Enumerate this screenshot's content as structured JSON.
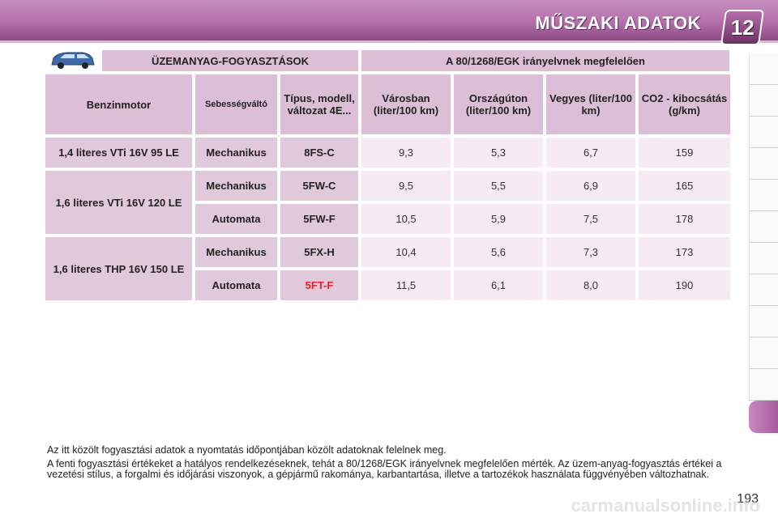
{
  "header": {
    "title": "MŰSZAKI ADATOK",
    "chapter": "12"
  },
  "table": {
    "group_left": "ÜZEMANYAG-FOGYASZTÁSOK",
    "group_right": "A 80/1268/EGK irányelvnek megfelelően",
    "columns": [
      "Benzinmotor",
      "Sebességváltó",
      "Típus, modell, változat 4E...",
      "Városban (liter/100 km)",
      "Országúton (liter/100 km)",
      "Vegyes (liter/100 km)",
      "CO2 - kibocsátás (g/km)"
    ],
    "rows": [
      {
        "engine": "1,4 literes VTi 16V 95 LE",
        "gearbox": "Mechanikus",
        "type": "8FS-C",
        "city": "9,3",
        "road": "5,3",
        "mixed": "6,7",
        "co2": "159"
      },
      {
        "engine": "1,6 literes VTi 16V 120 LE",
        "gearbox": "Mechanikus",
        "type": "5FW-C",
        "city": "9,5",
        "road": "5,5",
        "mixed": "6,9",
        "co2": "165"
      },
      {
        "engine": "",
        "gearbox": "Automata",
        "type": "5FW-F",
        "city": "10,5",
        "road": "5,9",
        "mixed": "7,5",
        "co2": "178"
      },
      {
        "engine": "1,6 literes THP 16V 150 LE",
        "gearbox": "Mechanikus",
        "type": "5FX-H",
        "city": "10,4",
        "road": "5,6",
        "mixed": "7,3",
        "co2": "173"
      },
      {
        "engine": "",
        "gearbox": "Automata",
        "type": "5FT-F",
        "city": "11,5",
        "road": "6,1",
        "mixed": "8,0",
        "co2": "190"
      }
    ]
  },
  "footnotes": [
    "Az itt közölt fogyasztási adatok a nyomtatás időpontjában közölt adatoknak felelnek meg.",
    "A fenti fogyasztási értékeket a hatályos rendelkezéseknek, tehát a 80/1268/EGK irányelvnek megfelelően mérték. Az üzem-anyag-fogyasztás értékei a vezetési stílus, a forgalmi és időjárási viszonyok, a gépjármű rakománya, karbantartása, illetve a tartozékok használata függvényében változhatnak."
  ],
  "page_number": "193",
  "watermark": "carmanualsonline.info",
  "colors": {
    "accent": "#b46fab",
    "highlight_red": "#e8202a"
  },
  "icons": [
    "car-icon"
  ]
}
